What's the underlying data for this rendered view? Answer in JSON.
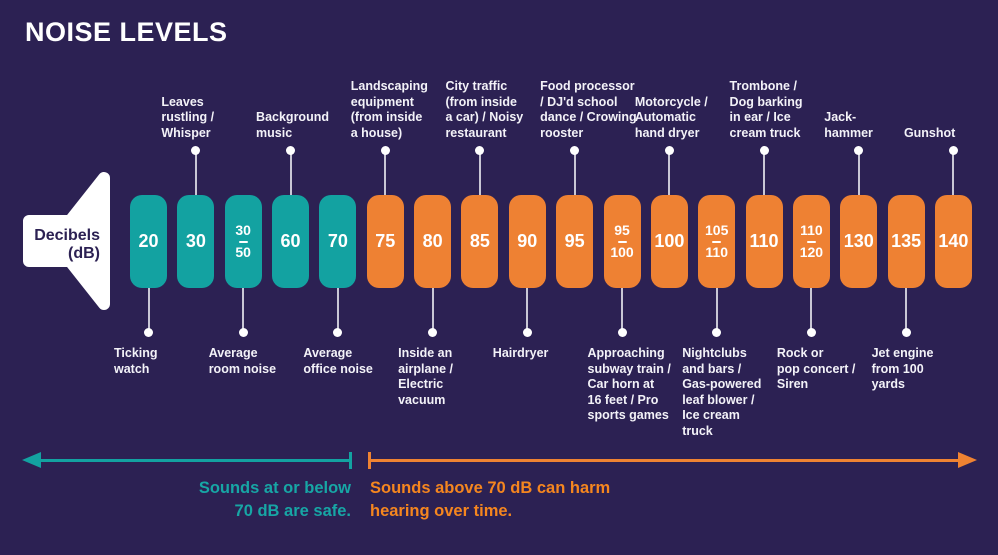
{
  "title": "NOISE LEVELS",
  "axis_label": "Decibels\n(dB)",
  "colors": {
    "background": "#2c2153",
    "teal": "#13a2a1",
    "orange": "#ee8133",
    "white": "#ffffff",
    "stem": "#c9c7d5"
  },
  "legend": {
    "safe_text": "Sounds at or below\n70 dB are safe.",
    "harm_text": "Sounds above 70 dB can harm\nhearing over time."
  },
  "columns": [
    {
      "db_lines": [
        "20"
      ],
      "color": "teal",
      "label_position": "below",
      "label": "Ticking\nwatch"
    },
    {
      "db_lines": [
        "30"
      ],
      "color": "teal",
      "label_position": "above",
      "label": "Leaves\nrustling /\nWhisper"
    },
    {
      "db_lines": [
        "30",
        "50"
      ],
      "color": "teal",
      "label_position": "below",
      "label": "Average\nroom noise"
    },
    {
      "db_lines": [
        "60"
      ],
      "color": "teal",
      "label_position": "above",
      "label": "Background\nmusic"
    },
    {
      "db_lines": [
        "70"
      ],
      "color": "teal",
      "label_position": "below",
      "label": "Average\noffice noise"
    },
    {
      "db_lines": [
        "75"
      ],
      "color": "orange",
      "label_position": "above",
      "label": "Landscaping\nequipment\n(from inside\na house)"
    },
    {
      "db_lines": [
        "80"
      ],
      "color": "orange",
      "label_position": "below",
      "label": "Inside an\nairplane /\nElectric\nvacuum"
    },
    {
      "db_lines": [
        "85"
      ],
      "color": "orange",
      "label_position": "above",
      "label": "City traffic\n(from inside\na car) / Noisy\nrestaurant"
    },
    {
      "db_lines": [
        "90"
      ],
      "color": "orange",
      "label_position": "below",
      "label": "Hairdryer"
    },
    {
      "db_lines": [
        "95"
      ],
      "color": "orange",
      "label_position": "above",
      "label": "Food processor\n/ DJ'd school\ndance / Crowing\nrooster"
    },
    {
      "db_lines": [
        "95",
        "100"
      ],
      "color": "orange",
      "label_position": "below",
      "label": "Approaching\nsubway train /\nCar horn at\n16 feet / Pro\nsports games"
    },
    {
      "db_lines": [
        "100"
      ],
      "color": "orange",
      "label_position": "above",
      "label": "Motorcycle /\nAutomatic\nhand dryer"
    },
    {
      "db_lines": [
        "105",
        "110"
      ],
      "color": "orange",
      "label_position": "below",
      "label": "Nightclubs\nand bars /\nGas-powered\nleaf blower /\nIce cream\ntruck"
    },
    {
      "db_lines": [
        "110"
      ],
      "color": "orange",
      "label_position": "above",
      "label": "Trombone /\nDog barking\nin ear / Ice\ncream truck"
    },
    {
      "db_lines": [
        "110",
        "120"
      ],
      "color": "orange",
      "label_position": "below",
      "label": "Rock or\npop concert /\nSiren"
    },
    {
      "db_lines": [
        "130"
      ],
      "color": "orange",
      "label_position": "above",
      "label": "Jack-\nhammer"
    },
    {
      "db_lines": [
        "135"
      ],
      "color": "orange",
      "label_position": "below",
      "label": "Jet engine\nfrom 100\nyards"
    },
    {
      "db_lines": [
        "140"
      ],
      "color": "orange",
      "label_position": "above",
      "label": "Gunshot"
    }
  ],
  "chart_data": {
    "type": "bar",
    "title": "NOISE LEVELS",
    "unit": "Decibels (dB)",
    "safe_threshold_db": 70,
    "legend": [
      "Sounds at or below 70 dB are safe.",
      "Sounds above 70 dB can harm hearing over time."
    ],
    "points": [
      {
        "db": "20",
        "zone": "safe",
        "label": "Ticking watch"
      },
      {
        "db": "30",
        "zone": "safe",
        "label": "Leaves rustling / Whisper"
      },
      {
        "db": "30-50",
        "zone": "safe",
        "label": "Average room noise"
      },
      {
        "db": "60",
        "zone": "safe",
        "label": "Background music"
      },
      {
        "db": "70",
        "zone": "safe",
        "label": "Average office noise"
      },
      {
        "db": "75",
        "zone": "harmful",
        "label": "Landscaping equipment (from inside a house)"
      },
      {
        "db": "80",
        "zone": "harmful",
        "label": "Inside an airplane / Electric vacuum"
      },
      {
        "db": "85",
        "zone": "harmful",
        "label": "City traffic (from inside a car) / Noisy restaurant"
      },
      {
        "db": "90",
        "zone": "harmful",
        "label": "Hairdryer"
      },
      {
        "db": "95",
        "zone": "harmful",
        "label": "Food processor / DJ'd school dance / Crowing rooster"
      },
      {
        "db": "95-100",
        "zone": "harmful",
        "label": "Approaching subway train / Car horn at 16 feet / Pro sports games"
      },
      {
        "db": "100",
        "zone": "harmful",
        "label": "Motorcycle / Automatic hand dryer"
      },
      {
        "db": "105-110",
        "zone": "harmful",
        "label": "Nightclubs and bars / Gas-powered leaf blower / Ice cream truck"
      },
      {
        "db": "110",
        "zone": "harmful",
        "label": "Trombone / Dog barking in ear / Ice cream truck"
      },
      {
        "db": "110-120",
        "zone": "harmful",
        "label": "Rock or pop concert / Siren"
      },
      {
        "db": "130",
        "zone": "harmful",
        "label": "Jack-hammer"
      },
      {
        "db": "135",
        "zone": "harmful",
        "label": "Jet engine from 100 yards"
      },
      {
        "db": "140",
        "zone": "harmful",
        "label": "Gunshot"
      }
    ]
  }
}
